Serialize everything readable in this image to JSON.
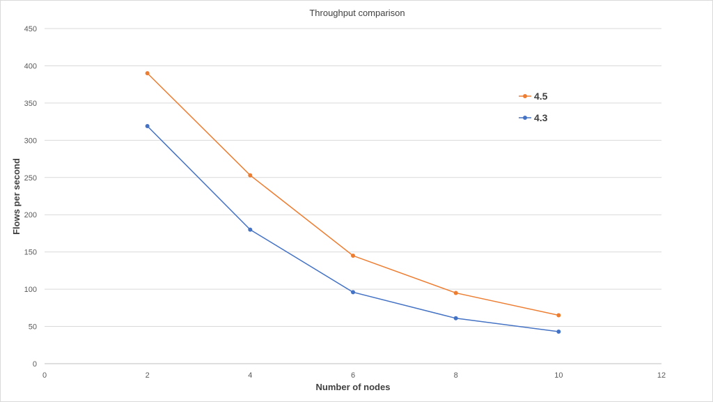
{
  "chart_data": {
    "type": "line",
    "title": "Throughput comparison",
    "xlabel": "Number of nodes",
    "ylabel": "Flows per second",
    "xlim": [
      0,
      12
    ],
    "ylim": [
      0,
      450
    ],
    "x_ticks": [
      0,
      2,
      4,
      6,
      8,
      10,
      12
    ],
    "y_ticks": [
      0,
      50,
      100,
      150,
      200,
      250,
      300,
      350,
      400,
      450
    ],
    "grid": "horizontal",
    "legend_position": "right",
    "series": [
      {
        "name": "4.5",
        "color": "#ED7D31",
        "x": [
          2,
          4,
          6,
          8,
          10
        ],
        "y": [
          390,
          253,
          145,
          95,
          65
        ]
      },
      {
        "name": "4.3",
        "color": "#4472C4",
        "x": [
          2,
          4,
          6,
          8,
          10
        ],
        "y": [
          319,
          180,
          96,
          61,
          43
        ]
      }
    ]
  }
}
